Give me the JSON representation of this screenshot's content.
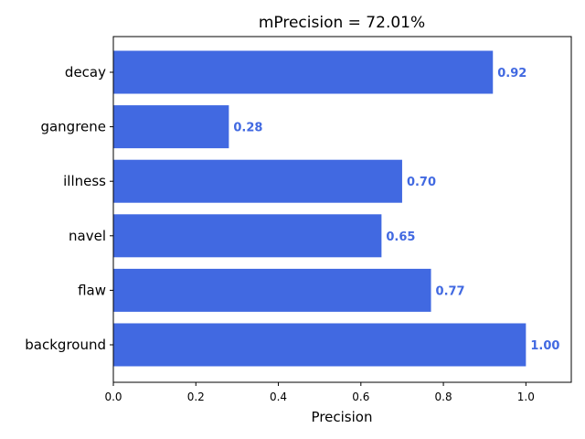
{
  "chart_data": {
    "type": "bar",
    "orientation": "horizontal",
    "title": "mPrecision = 72.01%",
    "xlabel": "Precision",
    "ylabel": "",
    "categories": [
      "decay",
      "gangrene",
      "illness",
      "navel",
      "flaw",
      "background"
    ],
    "values": [
      0.92,
      0.28,
      0.7,
      0.65,
      0.77,
      1.0
    ],
    "value_labels": [
      "0.92",
      "0.28",
      "0.70",
      "0.65",
      "0.77",
      "1.00"
    ],
    "xlim": [
      0,
      1.11
    ],
    "xticks": [
      0.0,
      0.2,
      0.4,
      0.6,
      0.8,
      1.0
    ],
    "xtick_labels": [
      "0.0",
      "0.2",
      "0.4",
      "0.6",
      "0.8",
      "1.0"
    ],
    "grid": false,
    "legend": "none",
    "bar_color": "#4169e1",
    "label_color": "#4169e1"
  }
}
